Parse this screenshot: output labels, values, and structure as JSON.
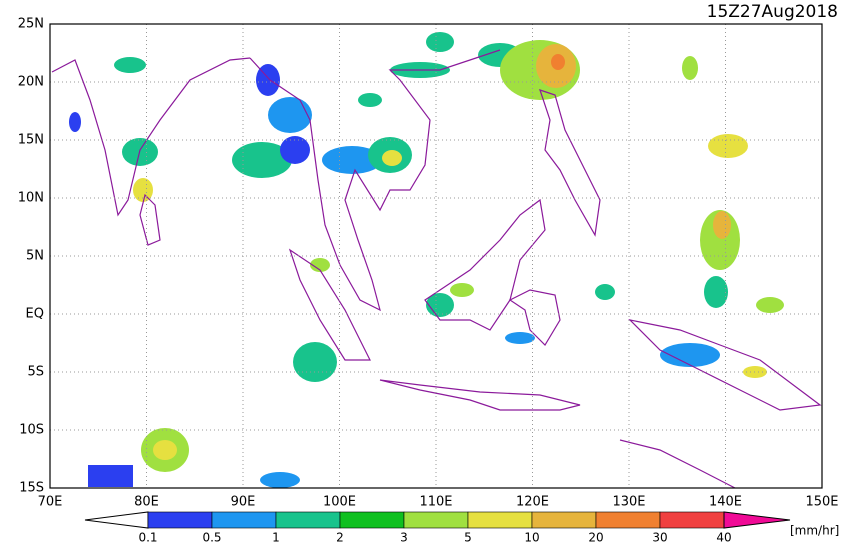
{
  "header": {
    "title": "15Z27Aug2018"
  },
  "map": {
    "lat_labels": [
      "25N",
      "20N",
      "15N",
      "10N",
      "5N",
      "EQ",
      "5S",
      "10S",
      "15S"
    ],
    "lon_labels": [
      "70E",
      "80E",
      "90E",
      "100E",
      "110E",
      "120E",
      "130E",
      "140E",
      "150E"
    ],
    "grid": true,
    "coast_color": "#8b1a9b"
  },
  "colorbar": {
    "levels": [
      0.1,
      0.5,
      1,
      2,
      3,
      5,
      10,
      20,
      30,
      40
    ],
    "colors": [
      "#ffffff",
      "#2b3ff0",
      "#1e96f0",
      "#18c38c",
      "#10c020",
      "#a0e040",
      "#e6e040",
      "#e6b43c",
      "#f08030",
      "#f04040",
      "#f00a96"
    ],
    "unit": "[mm/hr]"
  }
}
